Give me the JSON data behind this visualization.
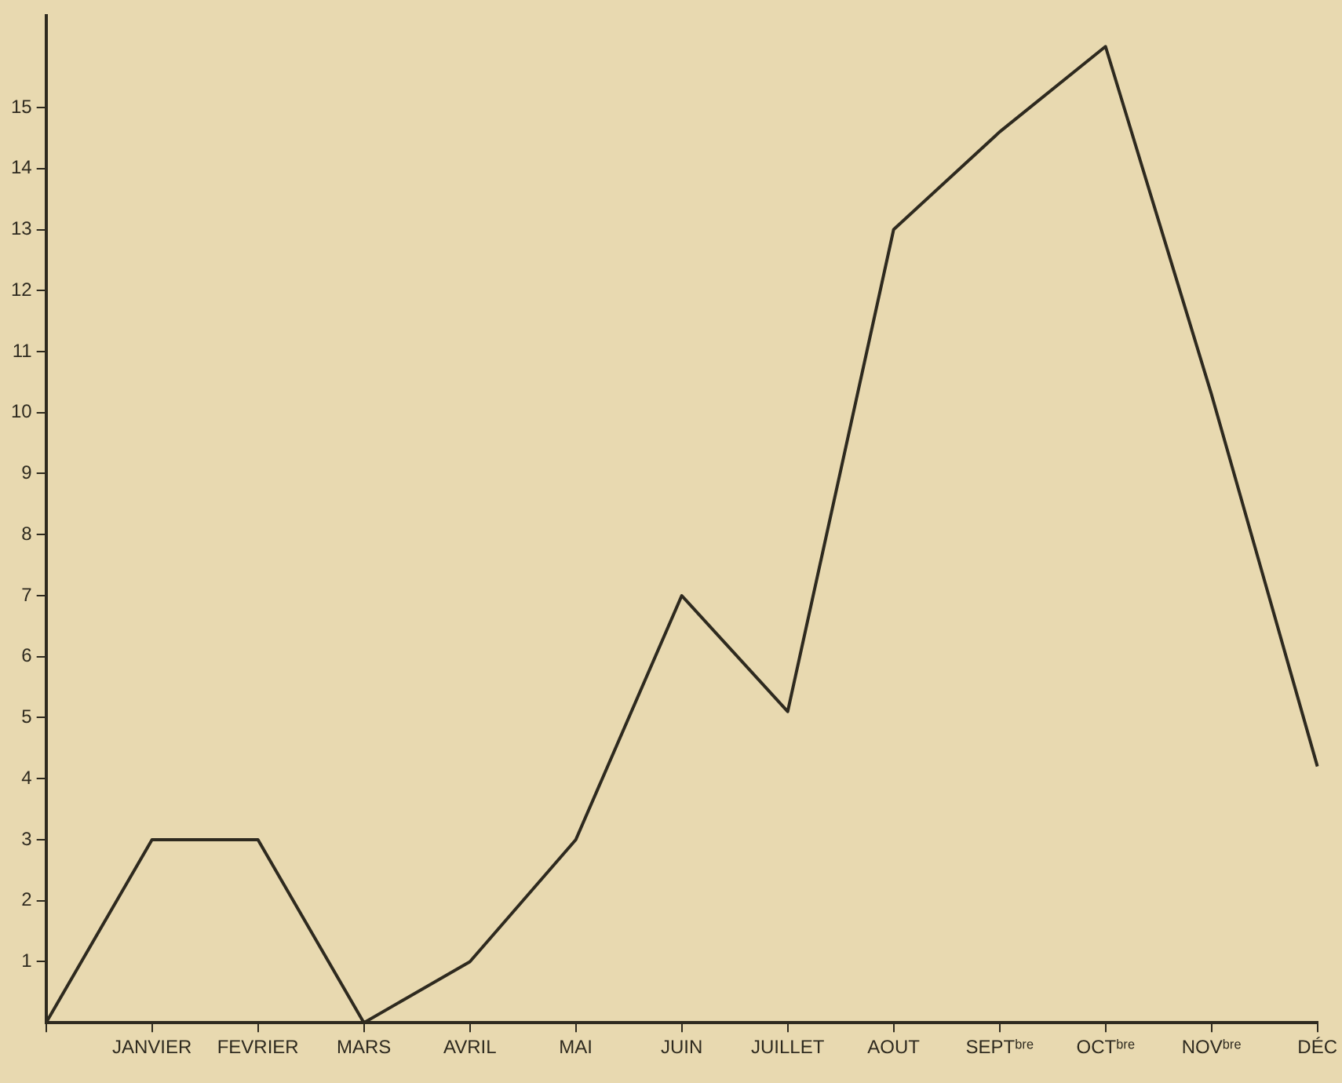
{
  "chart_data": {
    "type": "line",
    "categories": [
      null,
      "JANVIER",
      "FEVRIER",
      "MARS",
      "AVRIL",
      "MAI",
      "JUIN",
      "JUILLET",
      "AOUT",
      "SEPTᵇʳᵉ",
      "OCTᵇʳᵉ",
      "NOVᵇʳᵉ",
      "DÉC"
    ],
    "series": [
      {
        "color": "#2e2a1f",
        "values": [
          0,
          3,
          3,
          0,
          1,
          3,
          7,
          5.1,
          13,
          14.6,
          16,
          10.3,
          4.2
        ]
      }
    ],
    "ylim": [
      0,
      16.5
    ],
    "yticks": [
      1,
      2,
      3,
      4,
      5,
      6,
      7,
      8,
      9,
      10,
      11,
      12,
      13,
      14,
      15
    ],
    "grid": false,
    "legend": false
  }
}
